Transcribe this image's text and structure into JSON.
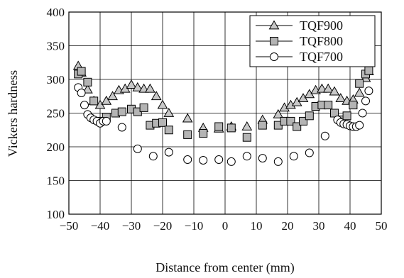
{
  "chart_data": {
    "type": "scatter",
    "title": "",
    "xlabel": "Distance from center (mm)",
    "ylabel": "Vickers hardness",
    "xlim": [
      -50,
      50
    ],
    "ylim": [
      100,
      400
    ],
    "x_ticks": [
      -50,
      -40,
      -30,
      -20,
      -10,
      0,
      10,
      20,
      30,
      40,
      50
    ],
    "x_tick_labels": [
      "−50",
      "−40",
      "−30",
      "−20",
      "−10",
      "0",
      "10",
      "20",
      "30",
      "40",
      "50"
    ],
    "y_ticks": [
      100,
      150,
      200,
      250,
      300,
      350,
      400
    ],
    "y_tick_labels": [
      "100",
      "150",
      "200",
      "250",
      "300",
      "350",
      "400"
    ],
    "grid": true,
    "legend_position": "top-right",
    "series": [
      {
        "name": "TQF900",
        "marker": "triangle",
        "color": "#000000",
        "fill": "#c8c8c8",
        "points": [
          [
            -47,
            320
          ],
          [
            -46,
            310
          ],
          [
            -44,
            285
          ],
          [
            -42,
            268
          ],
          [
            -40,
            262
          ],
          [
            -38,
            268
          ],
          [
            -36,
            275
          ],
          [
            -34,
            284
          ],
          [
            -32,
            286
          ],
          [
            -30,
            292
          ],
          [
            -28,
            288
          ],
          [
            -26,
            286
          ],
          [
            -24,
            286
          ],
          [
            -22,
            275
          ],
          [
            -20,
            262
          ],
          [
            -18,
            250
          ],
          [
            -12,
            242
          ],
          [
            -7,
            228
          ],
          [
            -2,
            227
          ],
          [
            2,
            230
          ],
          [
            7,
            230
          ],
          [
            12,
            240
          ],
          [
            17,
            248
          ],
          [
            19,
            258
          ],
          [
            21,
            262
          ],
          [
            23,
            266
          ],
          [
            25,
            272
          ],
          [
            27,
            278
          ],
          [
            29,
            284
          ],
          [
            31,
            286
          ],
          [
            33,
            286
          ],
          [
            35,
            282
          ],
          [
            37,
            272
          ],
          [
            39,
            268
          ],
          [
            41,
            270
          ],
          [
            43,
            280
          ],
          [
            45,
            302
          ],
          [
            46,
            312
          ]
        ]
      },
      {
        "name": "TQF800",
        "marker": "square",
        "color": "#000000",
        "fill": "#b4b4b4",
        "points": [
          [
            -47,
            308
          ],
          [
            -46,
            312
          ],
          [
            -44,
            296
          ],
          [
            -42,
            268
          ],
          [
            -40,
            238
          ],
          [
            -38,
            244
          ],
          [
            -35,
            250
          ],
          [
            -33,
            252
          ],
          [
            -30,
            256
          ],
          [
            -28,
            252
          ],
          [
            -26,
            258
          ],
          [
            -24,
            232
          ],
          [
            -22,
            235
          ],
          [
            -20,
            236
          ],
          [
            -18,
            225
          ],
          [
            -12,
            218
          ],
          [
            -7,
            220
          ],
          [
            -2,
            230
          ],
          [
            2,
            228
          ],
          [
            7,
            214
          ],
          [
            12,
            232
          ],
          [
            17,
            232
          ],
          [
            19,
            238
          ],
          [
            21,
            238
          ],
          [
            23,
            230
          ],
          [
            25,
            238
          ],
          [
            27,
            246
          ],
          [
            29,
            260
          ],
          [
            31,
            262
          ],
          [
            33,
            262
          ],
          [
            35,
            250
          ],
          [
            37,
            240
          ],
          [
            39,
            246
          ],
          [
            41,
            262
          ],
          [
            43,
            294
          ],
          [
            45,
            308
          ],
          [
            46,
            313
          ]
        ]
      },
      {
        "name": "TQF700",
        "marker": "circle",
        "color": "#000000",
        "fill": "#ffffff",
        "points": [
          [
            -47,
            288
          ],
          [
            -46,
            280
          ],
          [
            -45,
            262
          ],
          [
            -44,
            248
          ],
          [
            -43,
            243
          ],
          [
            -42,
            240
          ],
          [
            -41,
            238
          ],
          [
            -40,
            235
          ],
          [
            -39,
            238
          ],
          [
            -38,
            238
          ],
          [
            -33,
            229
          ],
          [
            -28,
            197
          ],
          [
            -23,
            186
          ],
          [
            -18,
            192
          ],
          [
            -12,
            181
          ],
          [
            -7,
            180
          ],
          [
            -2,
            181
          ],
          [
            2,
            178
          ],
          [
            7,
            186
          ],
          [
            12,
            183
          ],
          [
            17,
            178
          ],
          [
            22,
            186
          ],
          [
            27,
            191
          ],
          [
            32,
            216
          ],
          [
            36,
            240
          ],
          [
            37,
            236
          ],
          [
            38,
            234
          ],
          [
            39,
            233
          ],
          [
            40,
            231
          ],
          [
            41,
            230
          ],
          [
            42,
            230
          ],
          [
            43,
            232
          ],
          [
            44,
            250
          ],
          [
            45,
            268
          ],
          [
            46,
            283
          ]
        ]
      }
    ]
  }
}
